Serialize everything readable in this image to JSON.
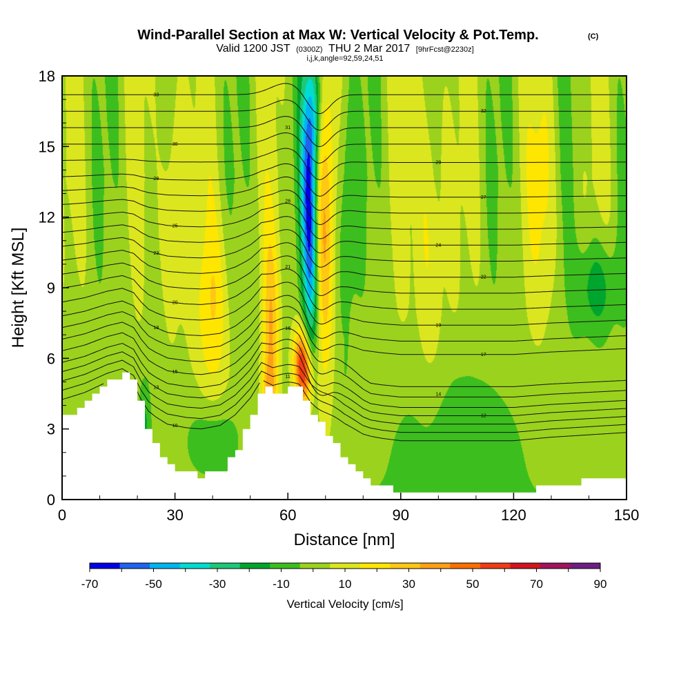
{
  "chart_data": {
    "type": "heatmap",
    "title": "Wind-Parallel Section at Max W: Vertical Velocity & Pot.Temp.",
    "title_mark": "(C)",
    "subtitle_parts": [
      "Valid 1200 JST",
      "(0300Z)",
      "THU 2 Mar 2017",
      "[9hrFcst@2230z]"
    ],
    "subtitle2": "i,j,k,angle=92,59,24,51",
    "xlabel": "Distance [nm]",
    "ylabel": "Height [Kft MSL]",
    "xlim": [
      0,
      150
    ],
    "ylim": [
      0,
      18
    ],
    "x_ticks": [
      0,
      30,
      60,
      90,
      120,
      150
    ],
    "y_ticks": [
      0,
      3,
      6,
      9,
      12,
      15,
      18
    ],
    "colorbar": {
      "label": "Vertical Velocity [cm/s]",
      "ticks": [
        -70,
        -50,
        -30,
        -10,
        10,
        30,
        50,
        70,
        90
      ],
      "levels": [
        -70,
        -60,
        -50,
        -40,
        -30,
        -20,
        -10,
        0,
        10,
        20,
        30,
        40,
        50,
        60,
        70,
        80,
        90
      ],
      "colors": [
        "#0000e6",
        "#1e64f0",
        "#00b4f0",
        "#00dcd2",
        "#1ec878",
        "#00a52d",
        "#3cbe1e",
        "#9bd21e",
        "#dce61e",
        "#ffe600",
        "#ffc814",
        "#ffa014",
        "#ff6e00",
        "#f03c14",
        "#d2141e",
        "#a0145a",
        "#6e1e82"
      ]
    },
    "terrain_top_kft": [
      [
        0,
        3.5
      ],
      [
        6,
        4.1
      ],
      [
        12,
        5.0
      ],
      [
        16,
        5.4
      ],
      [
        19,
        4.8
      ],
      [
        21,
        3.5
      ],
      [
        23,
        2.5
      ],
      [
        25,
        2.0
      ],
      [
        28,
        1.4
      ],
      [
        33,
        1.1
      ],
      [
        37,
        1.0
      ],
      [
        42,
        1.3
      ],
      [
        46,
        2.2
      ],
      [
        50,
        3.6
      ],
      [
        53,
        5.1
      ],
      [
        56,
        4.5
      ],
      [
        60,
        4.7
      ],
      [
        63,
        4.7
      ],
      [
        66,
        3.6
      ],
      [
        70,
        2.8
      ],
      [
        75,
        1.6
      ],
      [
        80,
        0.8
      ],
      [
        85,
        0.5
      ],
      [
        90,
        0.3
      ],
      [
        100,
        0.3
      ],
      [
        120,
        0.3
      ],
      [
        130,
        0.6
      ],
      [
        140,
        0.8
      ],
      [
        150,
        1.0
      ]
    ],
    "updraft_max_cm_s": 70,
    "downdraft_min_cm_s": -70,
    "updraft_max_location": {
      "x_nm": 64,
      "height_kft": 5.5
    },
    "downdraft_min_location": {
      "x_nm": 66,
      "height_kft": 11.5
    },
    "theta_contours": [
      {
        "base_kft": 4.1,
        "label": "10"
      },
      {
        "base_kft": 4.5,
        "label": "11"
      },
      {
        "base_kft": 4.9,
        "label": "12"
      },
      {
        "base_kft": 5.3,
        "label": "13"
      },
      {
        "base_kft": 5.7,
        "label": "14"
      },
      {
        "base_kft": 6.2,
        "label": "15"
      },
      {
        "base_kft": 6.7,
        "label": "16"
      },
      {
        "base_kft": 7.2,
        "label": "17"
      },
      {
        "base_kft": 7.7,
        "label": "18"
      },
      {
        "base_kft": 8.3,
        "label": "19"
      },
      {
        "base_kft": 8.9,
        "label": "20"
      },
      {
        "base_kft": 9.5,
        "label": "21"
      },
      {
        "base_kft": 10.1,
        "label": "22"
      },
      {
        "base_kft": 10.7,
        "label": "23"
      },
      {
        "base_kft": 11.3,
        "label": "24"
      },
      {
        "base_kft": 11.9,
        "label": "25"
      },
      {
        "base_kft": 12.5,
        "label": "26"
      },
      {
        "base_kft": 13.1,
        "label": "27"
      },
      {
        "base_kft": 13.7,
        "label": "28"
      },
      {
        "base_kft": 14.4,
        "label": "29"
      },
      {
        "base_kft": 15.1,
        "label": "30"
      },
      {
        "base_kft": 15.8,
        "label": "31"
      },
      {
        "base_kft": 16.5,
        "label": "32"
      },
      {
        "base_kft": 17.2,
        "label": "33"
      }
    ]
  }
}
